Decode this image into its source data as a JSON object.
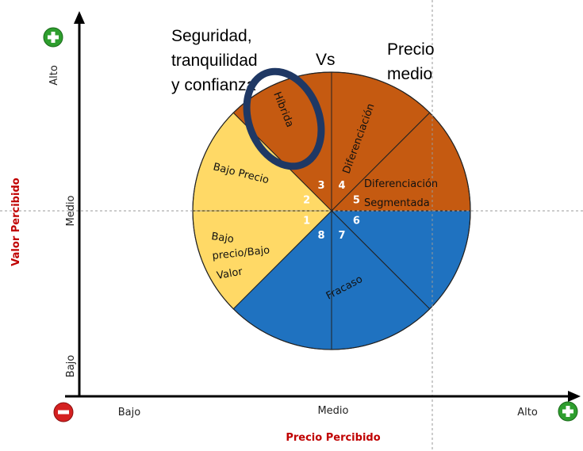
{
  "annotations": {
    "left": [
      "Seguridad,",
      "tranquilidad",
      "y confianza"
    ],
    "center": "Vs",
    "right": [
      "Precio",
      "medio"
    ]
  },
  "y_axis": {
    "title": "Valor Percibido",
    "labels": [
      "Alto",
      "Medio",
      "Bajo"
    ]
  },
  "x_axis": {
    "title": "Precio Percibido",
    "labels": [
      "Bajo",
      "Medio",
      "Alto"
    ]
  },
  "segments": {
    "hibrida": "Híbrida",
    "diferenciacion": "Diferenciación",
    "segmentada": [
      "Diferenciación",
      "Segmentada"
    ],
    "bajo_precio": "Bajo Precio",
    "bajo_valor": [
      "Bajo",
      "precio/Bajo",
      "Valor"
    ],
    "fracaso": "Fracaso"
  },
  "numbers": [
    1,
    2,
    3,
    4,
    5,
    6,
    7,
    8
  ]
}
